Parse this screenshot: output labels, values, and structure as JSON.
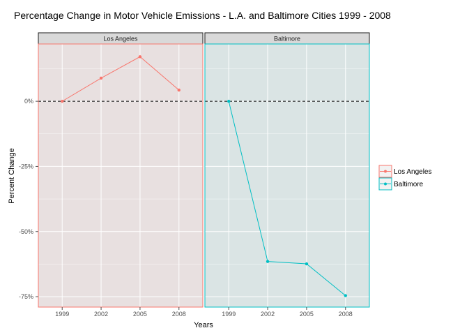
{
  "chart_data": {
    "type": "line",
    "title": "Percentage Change in Motor Vehicle Emissions - L.A. and Baltimore Cities 1999 - 2008",
    "xlabel": "Years",
    "ylabel": "Percent Change",
    "categories": [
      "1999",
      "2002",
      "2005",
      "2008"
    ],
    "y_ticks": [
      {
        "value": 0,
        "label": "0%"
      },
      {
        "value": -25,
        "label": "-25%"
      },
      {
        "value": -50,
        "label": "-50%"
      },
      {
        "value": -75,
        "label": "-75%"
      }
    ],
    "ylim": [
      -79,
      22
    ],
    "grid": true,
    "legend_position": "right",
    "reference_line": {
      "value": 0,
      "style": "dashed"
    },
    "series": [
      {
        "name": "Los Angeles",
        "color": "#F8766D",
        "panel_fill": "#E8E0E0",
        "values": [
          0,
          8.9,
          17.1,
          4.3
        ]
      },
      {
        "name": "Baltimore",
        "color": "#00BFC4",
        "panel_fill": "#DAE4E4",
        "values": [
          0,
          -61.5,
          -62.4,
          -74.6
        ]
      }
    ]
  }
}
